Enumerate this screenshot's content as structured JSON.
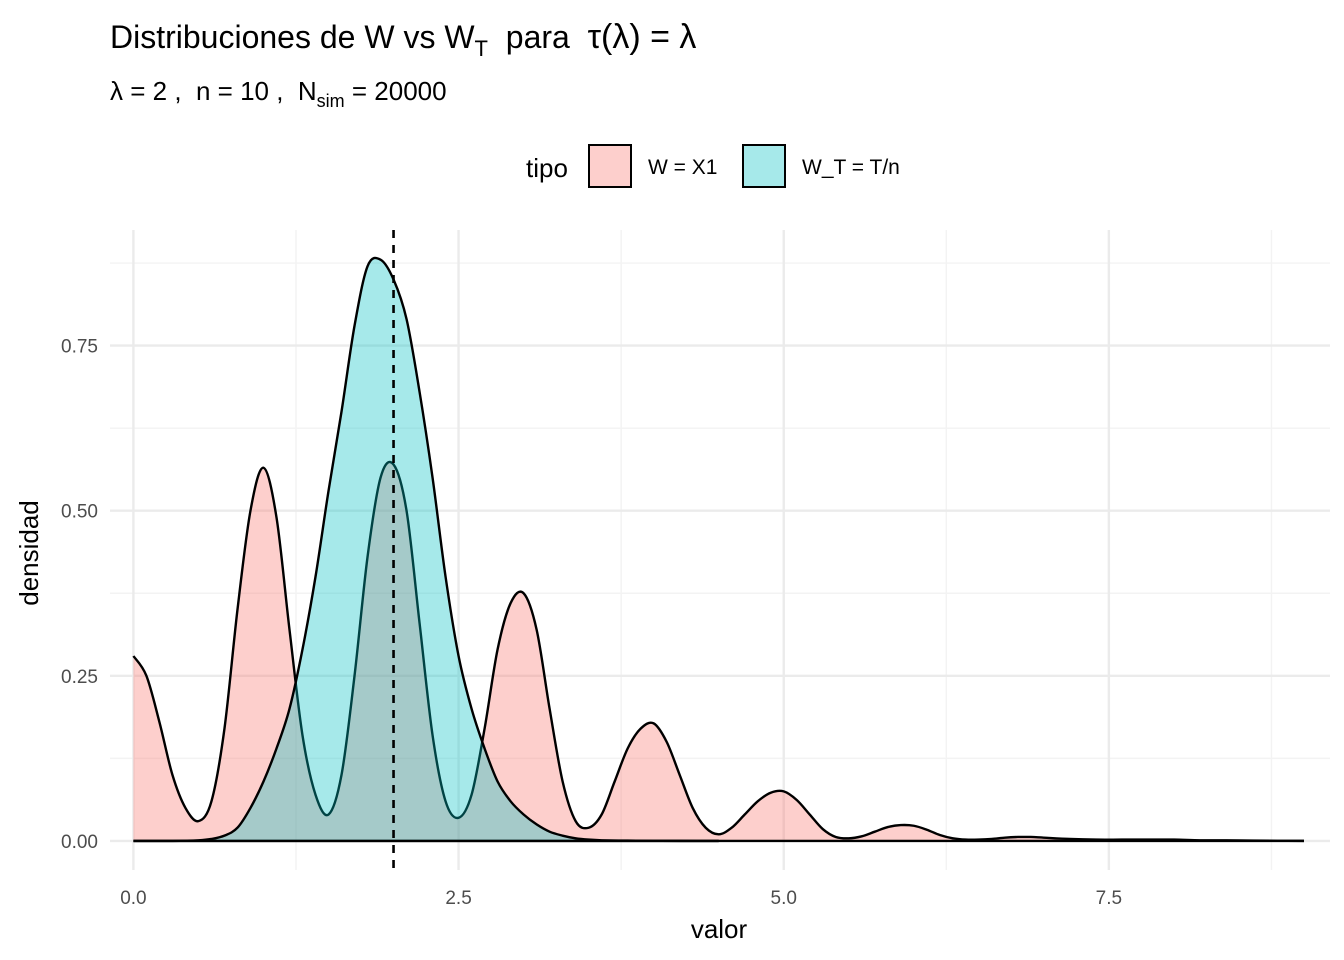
{
  "title_parts": {
    "pre": "Distribuciones de W vs W",
    "sub": "T",
    "post": "  para  ",
    "math": "τ(λ) = λ"
  },
  "subtitle_parts": {
    "pre": "λ = 2 ,  n = 10 ,  N",
    "sub": "sim",
    "post": " = 20000"
  },
  "colors": {
    "series_w": "#F8766D",
    "series_wt": "#00BFC4",
    "outline": "#000000",
    "grid": "#ebebeb"
  },
  "chart_data": {
    "type": "area",
    "title": "Distribuciones de W vs W_T  para  τ(λ) = λ",
    "subtitle": "λ = 2 ,  n = 10 ,  N_sim = 20000",
    "xlabel": "valor",
    "ylabel": "densidad",
    "xlim": [
      -0.18,
      9.2
    ],
    "ylim": [
      -0.044,
      0.925
    ],
    "xticks": [
      0,
      2.5,
      5,
      7.5
    ],
    "xtick_labels": [
      "0.0",
      "2.5",
      "5.0",
      "7.5"
    ],
    "yticks": [
      0,
      0.25,
      0.5,
      0.75
    ],
    "ytick_labels": [
      "0.00",
      "0.25",
      "0.50",
      "0.75"
    ],
    "grid": true,
    "legend": {
      "title": "tipo",
      "position": "top",
      "entries": [
        "W = X1",
        "W_T = T/n"
      ]
    },
    "reference_line": {
      "x": 2,
      "style": "dashed"
    },
    "series": [
      {
        "name": "W = X1",
        "x": [
          0,
          0.1,
          0.2,
          0.3,
          0.4,
          0.5,
          0.6,
          0.7,
          0.8,
          0.9,
          1.0,
          1.1,
          1.2,
          1.3,
          1.4,
          1.5,
          1.6,
          1.7,
          1.8,
          1.9,
          2.0,
          2.1,
          2.2,
          2.3,
          2.4,
          2.5,
          2.6,
          2.7,
          2.8,
          2.9,
          3.0,
          3.1,
          3.2,
          3.3,
          3.4,
          3.5,
          3.6,
          3.7,
          3.8,
          3.9,
          4.0,
          4.1,
          4.2,
          4.3,
          4.4,
          4.5,
          4.6,
          4.7,
          4.8,
          4.9,
          5.0,
          5.1,
          5.2,
          5.3,
          5.4,
          5.5,
          5.6,
          5.7,
          5.8,
          5.9,
          6.0,
          6.1,
          6.2,
          6.3,
          6.4,
          6.5,
          6.6,
          6.7,
          6.8,
          6.9,
          7.0,
          7.2,
          7.4,
          7.6,
          7.8,
          8.0,
          8.2,
          8.4,
          8.6,
          8.8,
          9.0
        ],
        "values": [
          0.28,
          0.25,
          0.18,
          0.1,
          0.05,
          0.03,
          0.06,
          0.17,
          0.35,
          0.5,
          0.565,
          0.49,
          0.32,
          0.16,
          0.07,
          0.04,
          0.1,
          0.25,
          0.43,
          0.55,
          0.57,
          0.5,
          0.33,
          0.16,
          0.06,
          0.035,
          0.07,
          0.17,
          0.29,
          0.36,
          0.375,
          0.32,
          0.2,
          0.09,
          0.03,
          0.02,
          0.04,
          0.09,
          0.14,
          0.17,
          0.178,
          0.15,
          0.1,
          0.05,
          0.02,
          0.01,
          0.02,
          0.04,
          0.06,
          0.073,
          0.075,
          0.062,
          0.04,
          0.018,
          0.006,
          0.004,
          0.007,
          0.014,
          0.021,
          0.024,
          0.023,
          0.017,
          0.009,
          0.004,
          0.002,
          0.002,
          0.003,
          0.005,
          0.006,
          0.006,
          0.005,
          0.003,
          0.002,
          0.002,
          0.002,
          0.002,
          0.001,
          0.001,
          0.0005,
          0.0002,
          0.0001
        ]
      },
      {
        "name": "W_T = T/n",
        "x": [
          0,
          0.3,
          0.5,
          0.6,
          0.7,
          0.8,
          0.9,
          1.0,
          1.1,
          1.2,
          1.3,
          1.4,
          1.5,
          1.6,
          1.7,
          1.8,
          1.9,
          2.0,
          2.1,
          2.2,
          2.3,
          2.4,
          2.5,
          2.6,
          2.7,
          2.8,
          2.9,
          3.0,
          3.1,
          3.2,
          3.3,
          3.4,
          3.5,
          3.6,
          3.8,
          4.0,
          4.2,
          4.5
        ],
        "values": [
          0,
          0,
          0.001,
          0.003,
          0.008,
          0.02,
          0.05,
          0.09,
          0.14,
          0.2,
          0.29,
          0.4,
          0.53,
          0.65,
          0.78,
          0.87,
          0.88,
          0.85,
          0.79,
          0.68,
          0.55,
          0.4,
          0.28,
          0.2,
          0.14,
          0.09,
          0.06,
          0.04,
          0.025,
          0.014,
          0.008,
          0.004,
          0.002,
          0.001,
          0.0005,
          0.0002,
          0.0001,
          0
        ]
      }
    ]
  }
}
